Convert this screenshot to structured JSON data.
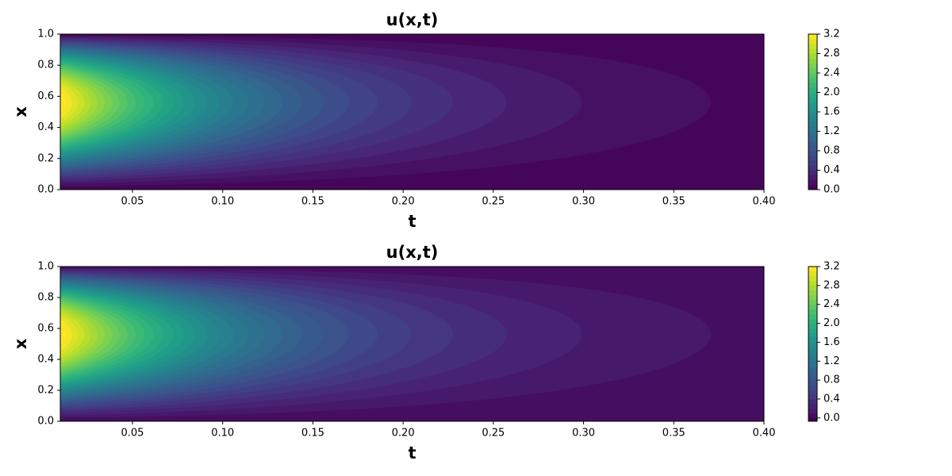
{
  "chart_data": [
    {
      "type": "contour",
      "title": "u(x,t)",
      "x_label": "t",
      "y_label": "x",
      "colormap": "viridis",
      "xlim": [
        0.01,
        0.4
      ],
      "xticks": [
        0.05,
        {
          "value": 0.1,
          "label": "0.10"
        },
        0.15,
        {
          "value": 0.2,
          "label": "0.20"
        },
        0.25,
        {
          "value": 0.3,
          "label": "0.30"
        },
        0.35,
        {
          "value": 0.4,
          "label": "0.40"
        }
      ],
      "ylim": [
        0,
        1
      ],
      "yticks": [
        {
          "value": 0,
          "label": "0.0"
        },
        0.2,
        0.4,
        0.6,
        0.8,
        {
          "value": 1,
          "label": "1.0"
        }
      ],
      "clim": [
        0,
        3.2
      ],
      "cticks": [
        {
          "value": 0,
          "label": "0.0"
        },
        0.4,
        0.8,
        1.2,
        1.6,
        {
          "value": 2,
          "label": "2.0"
        },
        2.4,
        2.8,
        3.2
      ],
      "levels": [
        0,
        0.1,
        0.2,
        0.3,
        0.4,
        0.5,
        0.6,
        0.7,
        0.8,
        0.9,
        1,
        1.1,
        1.2,
        1.3,
        1.4,
        1.5,
        1.6,
        1.7,
        1.8,
        1.9,
        2,
        2.1,
        2.2,
        2.3,
        2.4,
        2.5,
        2.6,
        2.7,
        2.8,
        2.9,
        3,
        3.1,
        3.2
      ]
    },
    {
      "type": "contour",
      "title": "u(x,t)",
      "x_label": "t",
      "y_label": "x",
      "colormap": "viridis",
      "xlim": [
        0.01,
        0.4
      ],
      "xticks": [
        0.05,
        {
          "value": 0.1,
          "label": "0.10"
        },
        0.15,
        {
          "value": 0.2,
          "label": "0.20"
        },
        0.25,
        {
          "value": 0.3,
          "label": "0.30"
        },
        0.35,
        {
          "value": 0.4,
          "label": "0.40"
        }
      ],
      "ylim": [
        0,
        1
      ],
      "yticks": [
        {
          "value": 0,
          "label": "0.0"
        },
        0.2,
        0.4,
        0.6,
        0.8,
        {
          "value": 1,
          "label": "1.0"
        }
      ],
      "clim": [
        -0.07,
        3.2
      ],
      "cticks": [
        {
          "value": 0,
          "label": "0.0"
        },
        0.4,
        0.8,
        1.2,
        1.6,
        {
          "value": 2,
          "label": "2.0"
        },
        2.4,
        2.8,
        3.2
      ],
      "levels": [
        0,
        0.1,
        0.2,
        0.3,
        0.4,
        0.5,
        0.6,
        0.7,
        0.8,
        0.9,
        1,
        1.1,
        1.2,
        1.3,
        1.4,
        1.5,
        1.6,
        1.7,
        1.8,
        1.9,
        2,
        2.1,
        2.2,
        2.3,
        2.4,
        2.5,
        2.6,
        2.7,
        2.8,
        2.9,
        3,
        3.1,
        3.2
      ]
    }
  ]
}
